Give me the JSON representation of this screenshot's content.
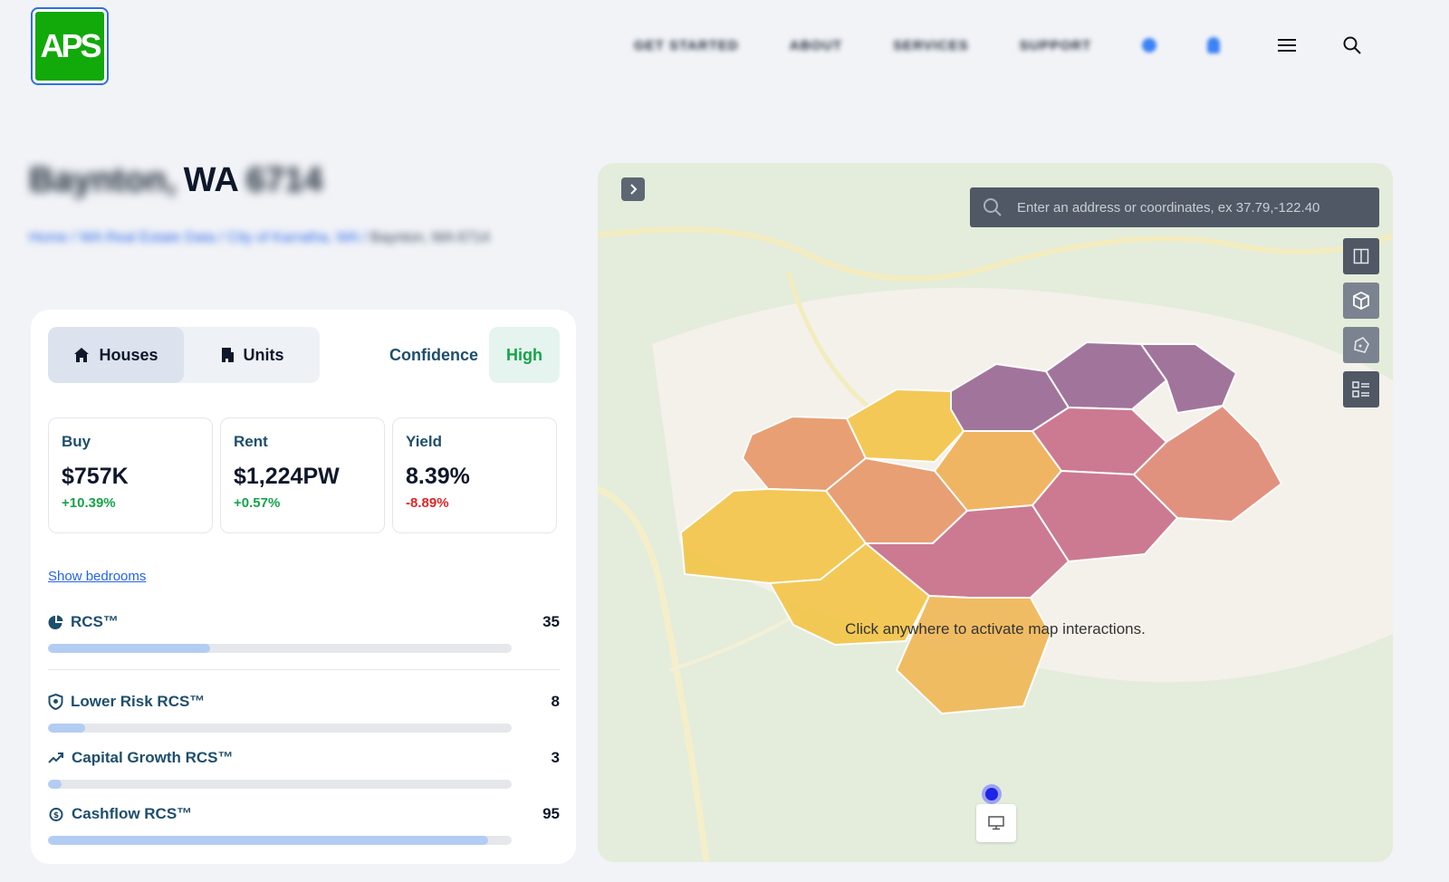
{
  "header": {
    "logo_text": "APS",
    "nav": [
      "GET STARTED",
      "ABOUT",
      "SERVICES",
      "SUPPORT"
    ],
    "icons": [
      "globe-icon",
      "user-icon",
      "menu-icon",
      "search-icon"
    ]
  },
  "location": {
    "title_blurred_prefix": "Baynton,",
    "title_state": "WA",
    "title_blurred_suffix": "6714",
    "breadcrumb": [
      "Home",
      "WA Real Estate Data",
      "City of Karratha, WA"
    ],
    "breadcrumb_last": "Baynton, WA 6714"
  },
  "panel": {
    "tabs": [
      {
        "label": "Houses",
        "icon": "home-icon",
        "active": true
      },
      {
        "label": "Units",
        "icon": "building-icon",
        "active": false
      }
    ],
    "confidence_label": "Confidence",
    "confidence_value": "High",
    "cards": [
      {
        "label": "Buy",
        "value": "$757K",
        "change": "+10.39%",
        "direction": "up"
      },
      {
        "label": "Rent",
        "value": "$1,224PW",
        "change": "+0.57%",
        "direction": "up"
      },
      {
        "label": "Yield",
        "value": "8.39%",
        "change": "-8.89%",
        "direction": "down"
      }
    ],
    "show_bedrooms": "Show bedrooms",
    "metrics": [
      {
        "name": "RCS™",
        "icon": "pie-chart-icon",
        "value": "35",
        "fraction": 0.35
      },
      {
        "name": "Lower Risk RCS™",
        "icon": "shield-icon",
        "value": "8",
        "fraction": 0.08
      },
      {
        "name": "Capital Growth RCS™",
        "icon": "trending-up-icon",
        "value": "3",
        "fraction": 0.03
      },
      {
        "name": "Cashflow RCS™",
        "icon": "cashflow-icon",
        "value": "95",
        "fraction": 0.95
      }
    ]
  },
  "map": {
    "search_placeholder": "Enter an address or coordinates, ex 37.79,-122.40",
    "message": "Click anywhere to activate map interactions.",
    "tools": [
      "split-view-icon",
      "cube-3d-icon",
      "polygon-icon",
      "list-view-icon"
    ],
    "hex_colors": [
      "#f4c54a",
      "#e8996a",
      "#c8708a",
      "#9b6b95",
      "#e08a76"
    ]
  }
}
